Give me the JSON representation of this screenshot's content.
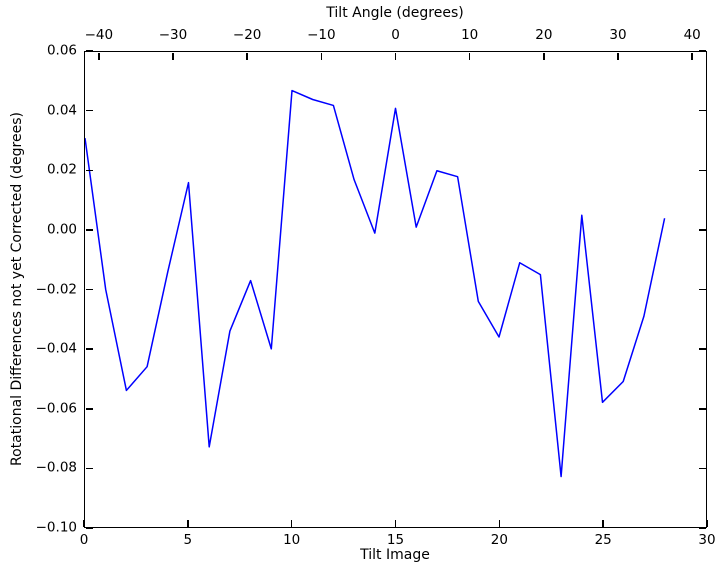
{
  "figure": {
    "top_axis_label": "Tilt Angle (degrees)",
    "x_axis_label": "Tilt Image",
    "y_axis_label": "Rotational Differences not yet Corrected (degrees)"
  },
  "colors": {
    "line": "#0000ff",
    "axis": "#000000",
    "background": "#ffffff"
  },
  "chart_data": {
    "type": "line",
    "title": "Tilt Angle (degrees)",
    "xlabel": "Tilt Image",
    "ylabel": "Rotational Differences not yet Corrected (degrees)",
    "legend": null,
    "grid": false,
    "xlim": [
      0,
      30
    ],
    "ylim": [
      -0.1,
      0.06
    ],
    "top_axis_lim": [
      -42,
      42
    ],
    "x": [
      0,
      1,
      2,
      3,
      4,
      5,
      6,
      7,
      8,
      9,
      10,
      11,
      12,
      13,
      14,
      15,
      16,
      17,
      18,
      19,
      20,
      21,
      22,
      23,
      24,
      25,
      26,
      27,
      28
    ],
    "y": [
      0.031,
      -0.02,
      -0.054,
      -0.046,
      -0.014,
      0.016,
      -0.073,
      -0.034,
      -0.017,
      -0.04,
      0.047,
      0.044,
      0.042,
      0.017,
      -0.001,
      0.041,
      0.001,
      0.02,
      0.018,
      -0.024,
      -0.036,
      -0.011,
      -0.015,
      -0.083,
      0.005,
      -0.058,
      -0.051,
      -0.029,
      0.004
    ],
    "x_ticks": {
      "values": [
        0,
        5,
        10,
        15,
        20,
        25,
        30
      ],
      "labels": [
        "0",
        "5",
        "10",
        "15",
        "20",
        "25",
        "30"
      ]
    },
    "y_ticks": {
      "values": [
        0.06,
        0.04,
        0.02,
        0.0,
        -0.02,
        -0.04,
        -0.06,
        -0.08,
        -0.1
      ],
      "labels": [
        "0.06",
        "0.04",
        "0.02",
        "0.00",
        "−0.02",
        "−0.04",
        "−0.06",
        "−0.08",
        "−0.10"
      ]
    },
    "top_ticks": {
      "values": [
        -40,
        -30,
        -20,
        -10,
        0,
        10,
        20,
        30,
        40
      ],
      "labels": [
        "−40",
        "−30",
        "−20",
        "−10",
        "0",
        "10",
        "20",
        "30",
        "40"
      ]
    }
  }
}
